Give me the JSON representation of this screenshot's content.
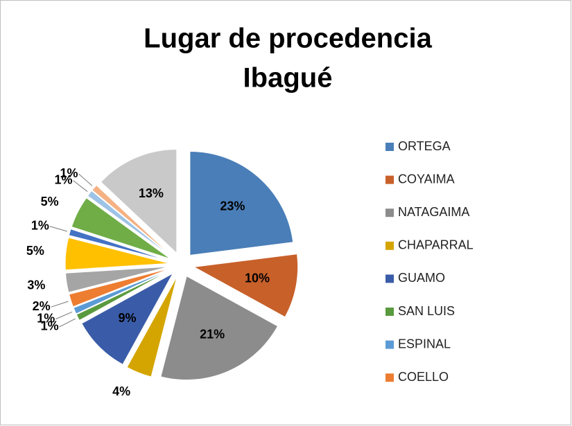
{
  "chart_data": {
    "type": "pie",
    "title": [
      "Lugar  de procedencia",
      "Ibagué"
    ],
    "categories": [
      "ORTEGA",
      "COYAIMA",
      "NATAGAIMA",
      "CHAPARRAL",
      "GUAMO",
      "SAN LUIS",
      "ESPINAL",
      "COELLO",
      null,
      null,
      null,
      null,
      null,
      null,
      null
    ],
    "values": [
      23,
      10,
      21,
      4,
      9,
      1,
      1,
      2,
      3,
      5,
      1,
      5,
      1,
      1,
      13
    ],
    "value_labels": [
      "23%",
      "10%",
      "21%",
      "4%",
      "9%",
      "1%",
      "1%",
      "2%",
      "3%",
      "5%",
      "1%",
      "5%",
      "1%",
      "1%",
      "13%"
    ],
    "colors": [
      "#4a7eb8",
      "#c8602a",
      "#8c8c8c",
      "#d4a500",
      "#3a5ca8",
      "#5a9a3f",
      "#5b9bd5",
      "#ed7d31",
      "#a5a5a5",
      "#ffc000",
      "#4472c4",
      "#70ad47",
      "#9dc3e6",
      "#f4b183",
      "#c9c9c9"
    ],
    "legend": "right"
  }
}
